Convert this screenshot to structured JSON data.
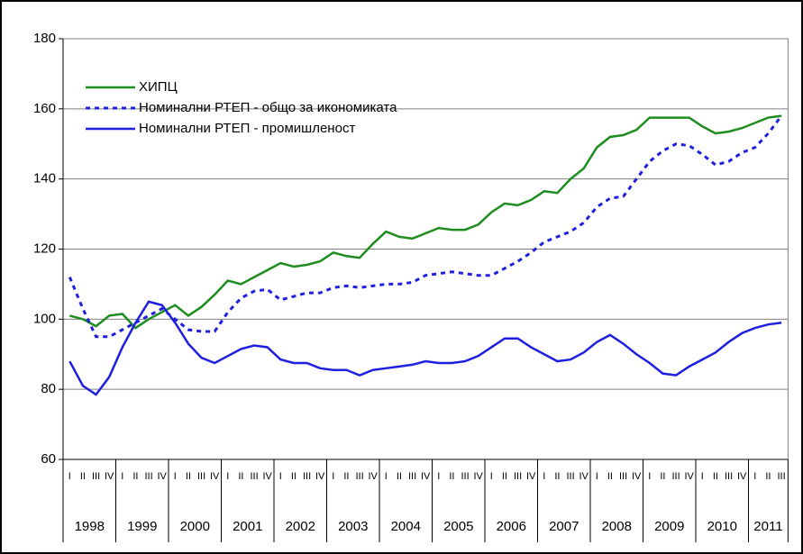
{
  "chart_data": {
    "type": "line",
    "categories": [
      "I",
      "II",
      "III",
      "IV",
      "I",
      "II",
      "III",
      "IV",
      "I",
      "II",
      "III",
      "IV",
      "I",
      "II",
      "III",
      "IV",
      "I",
      "II",
      "III",
      "IV",
      "I",
      "II",
      "III",
      "IV",
      "I",
      "II",
      "III",
      "IV",
      "I",
      "II",
      "III",
      "IV",
      "I",
      "II",
      "III",
      "IV",
      "I",
      "II",
      "III",
      "IV",
      "I",
      "II",
      "III",
      "IV",
      "I",
      "II",
      "III",
      "IV",
      "I",
      "II",
      "III",
      "IV",
      "I",
      "II",
      "III"
    ],
    "years": [
      "1998",
      "1999",
      "2000",
      "2001",
      "2002",
      "2003",
      "2004",
      "2005",
      "2006",
      "2007",
      "2008",
      "2009",
      "2010",
      "2011"
    ],
    "ylim": [
      60,
      180
    ],
    "yticks": [
      60,
      80,
      100,
      120,
      140,
      160,
      180
    ],
    "grid": true,
    "legend": "top-left",
    "series": [
      {
        "name": "ХИПЦ",
        "color": "#1e8c1e",
        "style": "solid",
        "values": [
          101,
          100,
          98,
          101,
          101.5,
          97.5,
          100,
          102,
          104,
          101,
          103.5,
          107,
          111,
          110,
          112,
          114,
          116,
          115,
          115.5,
          116.5,
          119,
          118,
          117.5,
          121.5,
          125,
          123.5,
          123,
          124.5,
          126,
          125.5,
          125.5,
          127,
          130.5,
          133,
          132.5,
          134,
          136.5,
          136,
          140,
          143,
          149,
          152,
          152.5,
          154,
          157.5,
          157.5,
          157.5,
          157.5,
          155,
          153,
          153.5,
          154.5,
          156,
          157.5,
          158
        ]
      },
      {
        "name": "Номинални РТЕП - общо за икономиката",
        "color": "#1f1fe0",
        "style": "dotted",
        "values": [
          112,
          103,
          95,
          95,
          97,
          99,
          101,
          103,
          100,
          97,
          96.5,
          96.5,
          102,
          106,
          108,
          108.5,
          105.5,
          106.5,
          107.5,
          107.5,
          109,
          109.5,
          109,
          109.5,
          110,
          110,
          110.5,
          112.5,
          113,
          113.5,
          113,
          112.5,
          112.5,
          114.5,
          116.5,
          119,
          122,
          123.5,
          125,
          127.5,
          132,
          134.5,
          135,
          140,
          145,
          148,
          150,
          149.5,
          147,
          144,
          145,
          147.5,
          149,
          153,
          158
        ]
      },
      {
        "name": "Номинални РТЕП - промишленост",
        "color": "#1f1fe0",
        "style": "solid",
        "values": [
          88,
          81,
          78.5,
          83.5,
          92,
          99,
          105,
          104,
          99,
          93,
          89,
          87.5,
          89.5,
          91.5,
          92.5,
          92,
          88.5,
          87.5,
          87.5,
          86,
          85.5,
          85.5,
          84,
          85.5,
          86,
          86.5,
          87,
          88,
          87.5,
          87.5,
          88,
          89.5,
          92,
          94.5,
          94.5,
          92,
          90,
          88,
          88.5,
          90.5,
          93.5,
          95.5,
          93,
          90,
          87.5,
          84.5,
          84,
          86.5,
          88.5,
          90.5,
          93.5,
          96,
          97.5,
          98.5,
          99
        ]
      }
    ]
  }
}
